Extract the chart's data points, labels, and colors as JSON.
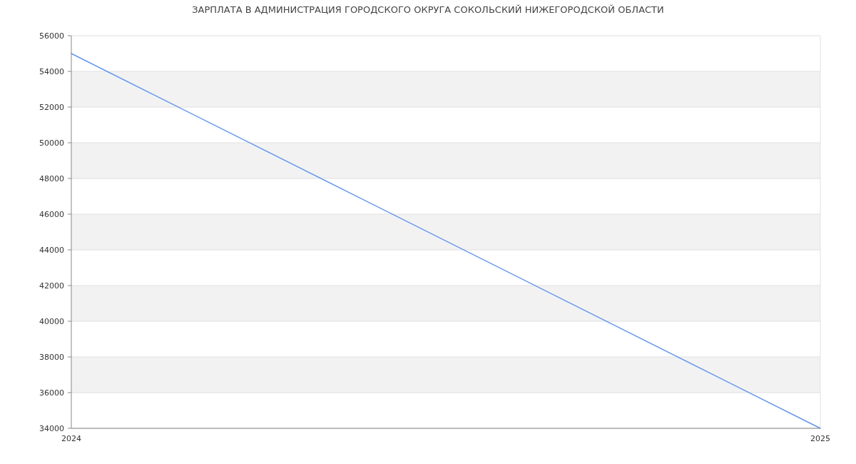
{
  "chart_data": {
    "type": "line",
    "title": "ЗАРПЛАТА В АДМИНИСТРАЦИЯ ГОРОДСКОГО ОКРУГА СОКОЛЬСКИЙ НИЖЕГОРОДСКОЙ ОБЛАСТИ",
    "x": [
      2024,
      2025
    ],
    "series": [
      {
        "color": "#6495ed",
        "values": [
          55000,
          34000
        ]
      }
    ],
    "xlim": [
      2024,
      2025
    ],
    "xticks": [
      2024,
      2025
    ],
    "ylim": [
      34000,
      56000
    ],
    "yticks": [
      34000,
      36000,
      38000,
      40000,
      42000,
      44000,
      46000,
      48000,
      50000,
      52000,
      54000,
      56000
    ],
    "grid": "y"
  }
}
